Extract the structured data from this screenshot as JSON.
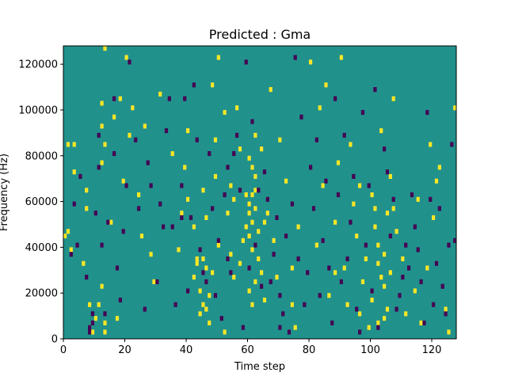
{
  "chart_data": {
    "type": "heatmap",
    "title": "Predicted : Gma",
    "xlabel": "Time step",
    "ylabel": "Frequency (Hz)",
    "xlim": [
      0,
      128
    ],
    "ylim": [
      0,
      128000
    ],
    "xticks": [
      0,
      20,
      40,
      60,
      80,
      100,
      120
    ],
    "yticks": [
      0,
      20000,
      40000,
      60000,
      80000,
      100000,
      120000
    ],
    "grid": false,
    "colors": {
      "background": "#21918c",
      "high": "#fde725",
      "low": "#440154"
    },
    "cells": {
      "high": [
        [
          0,
          44000
        ],
        [
          1,
          46000
        ],
        [
          1,
          84000
        ],
        [
          2,
          38000
        ],
        [
          3,
          72000
        ],
        [
          3,
          84000
        ],
        [
          6,
          32000
        ],
        [
          7,
          64000
        ],
        [
          7,
          56000
        ],
        [
          8,
          14000
        ],
        [
          8,
          4000
        ],
        [
          9,
          2000
        ],
        [
          10,
          8000
        ],
        [
          11,
          14000
        ],
        [
          12,
          22000
        ],
        [
          12,
          76000
        ],
        [
          12,
          92000
        ],
        [
          12,
          102000
        ],
        [
          13,
          6000
        ],
        [
          13,
          2000
        ],
        [
          13,
          84000
        ],
        [
          13,
          126000
        ],
        [
          15,
          50000
        ],
        [
          16,
          96000
        ],
        [
          17,
          8000
        ],
        [
          18,
          104000
        ],
        [
          19,
          68000
        ],
        [
          20,
          122000
        ],
        [
          21,
          88000
        ],
        [
          22,
          100000
        ],
        [
          24,
          62000
        ],
        [
          25,
          44000
        ],
        [
          26,
          92000
        ],
        [
          28,
          36000
        ],
        [
          29,
          24000
        ],
        [
          31,
          106000
        ],
        [
          35,
          80000
        ],
        [
          37,
          38000
        ],
        [
          38,
          54000
        ],
        [
          39,
          74000
        ],
        [
          40,
          60000
        ],
        [
          40,
          90000
        ],
        [
          42,
          48000
        ],
        [
          42,
          26000
        ],
        [
          43,
          34000
        ],
        [
          43,
          32000
        ],
        [
          44,
          20000
        ],
        [
          44,
          10000
        ],
        [
          45,
          14000
        ],
        [
          45,
          34000
        ],
        [
          45,
          64000
        ],
        [
          46,
          30000
        ],
        [
          46,
          52000
        ],
        [
          46,
          12000
        ],
        [
          47,
          6000
        ],
        [
          47,
          18000
        ],
        [
          48,
          28000
        ],
        [
          48,
          110000
        ],
        [
          49,
          70000
        ],
        [
          49,
          86000
        ],
        [
          50,
          40000
        ],
        [
          50,
          122000
        ],
        [
          52,
          98000
        ],
        [
          52,
          2000
        ],
        [
          53,
          54000
        ],
        [
          54,
          36000
        ],
        [
          54,
          66000
        ],
        [
          55,
          26000
        ],
        [
          55,
          60000
        ],
        [
          56,
          100000
        ],
        [
          57,
          32000
        ],
        [
          57,
          82000
        ],
        [
          58,
          42000
        ],
        [
          59,
          48000
        ],
        [
          59,
          62000
        ],
        [
          60,
          54000
        ],
        [
          60,
          44000
        ],
        [
          60,
          58000
        ],
        [
          60,
          78000
        ],
        [
          60,
          20000
        ],
        [
          61,
          62000
        ],
        [
          61,
          50000
        ],
        [
          61,
          38000
        ],
        [
          61,
          14000
        ],
        [
          61,
          74000
        ],
        [
          62,
          70000
        ],
        [
          62,
          24000
        ],
        [
          62,
          88000
        ],
        [
          62,
          56000
        ],
        [
          62,
          64000
        ],
        [
          63,
          46000
        ],
        [
          63,
          34000
        ],
        [
          64,
          28000
        ],
        [
          64,
          82000
        ],
        [
          65,
          50000
        ],
        [
          65,
          16000
        ],
        [
          66,
          54000
        ],
        [
          67,
          108000
        ],
        [
          68,
          42000
        ],
        [
          69,
          26000
        ],
        [
          70,
          86000
        ],
        [
          72,
          68000
        ],
        [
          74,
          30000
        ],
        [
          74,
          14000
        ],
        [
          75,
          4000
        ],
        [
          76,
          48000
        ],
        [
          80,
          120000
        ],
        [
          82,
          40000
        ],
        [
          83,
          100000
        ],
        [
          84,
          66000
        ],
        [
          85,
          110000
        ],
        [
          86,
          18000
        ],
        [
          88,
          50000
        ],
        [
          88,
          28000
        ],
        [
          89,
          76000
        ],
        [
          90,
          122000
        ],
        [
          91,
          30000
        ],
        [
          92,
          14000
        ],
        [
          93,
          84000
        ],
        [
          94,
          58000
        ],
        [
          95,
          44000
        ],
        [
          96,
          66000
        ],
        [
          96,
          10000
        ],
        [
          97,
          24000
        ],
        [
          98,
          34000
        ],
        [
          99,
          4000
        ],
        [
          100,
          62000
        ],
        [
          100,
          16000
        ],
        [
          101,
          48000
        ],
        [
          101,
          56000
        ],
        [
          102,
          32000
        ],
        [
          102,
          40000
        ],
        [
          102,
          6000
        ],
        [
          103,
          26000
        ],
        [
          103,
          90000
        ],
        [
          104,
          8000
        ],
        [
          104,
          36000
        ],
        [
          104,
          22000
        ],
        [
          105,
          54000
        ],
        [
          105,
          12000
        ],
        [
          106,
          28000
        ],
        [
          106,
          70000
        ],
        [
          107,
          104000
        ],
        [
          107,
          56000
        ],
        [
          108,
          46000
        ],
        [
          110,
          34000
        ],
        [
          111,
          10000
        ],
        [
          114,
          20000
        ],
        [
          115,
          60000
        ],
        [
          116,
          6000
        ],
        [
          118,
          30000
        ],
        [
          119,
          84000
        ],
        [
          120,
          52000
        ],
        [
          121,
          68000
        ],
        [
          122,
          74000
        ],
        [
          124,
          12000
        ],
        [
          125,
          2000
        ],
        [
          127,
          100000
        ]
      ],
      "low": [
        [
          2,
          36000
        ],
        [
          3,
          58000
        ],
        [
          4,
          40000
        ],
        [
          5,
          70000
        ],
        [
          7,
          26000
        ],
        [
          8,
          4000
        ],
        [
          8,
          2000
        ],
        [
          9,
          10000
        ],
        [
          9,
          6000
        ],
        [
          10,
          54000
        ],
        [
          11,
          74000
        ],
        [
          11,
          88000
        ],
        [
          12,
          40000
        ],
        [
          13,
          10000
        ],
        [
          14,
          50000
        ],
        [
          16,
          104000
        ],
        [
          16,
          80000
        ],
        [
          17,
          30000
        ],
        [
          18,
          16000
        ],
        [
          19,
          46000
        ],
        [
          20,
          66000
        ],
        [
          21,
          120000
        ],
        [
          23,
          86000
        ],
        [
          24,
          56000
        ],
        [
          26,
          12000
        ],
        [
          27,
          76000
        ],
        [
          28,
          66000
        ],
        [
          30,
          24000
        ],
        [
          31,
          58000
        ],
        [
          32,
          48000
        ],
        [
          33,
          90000
        ],
        [
          34,
          104000
        ],
        [
          35,
          48000
        ],
        [
          36,
          14000
        ],
        [
          38,
          66000
        ],
        [
          38,
          52000
        ],
        [
          39,
          104000
        ],
        [
          40,
          20000
        ],
        [
          41,
          52000
        ],
        [
          42,
          110000
        ],
        [
          43,
          86000
        ],
        [
          44,
          38000
        ],
        [
          45,
          28000
        ],
        [
          46,
          24000
        ],
        [
          47,
          80000
        ],
        [
          48,
          56000
        ],
        [
          49,
          18000
        ],
        [
          50,
          42000
        ],
        [
          51,
          8000
        ],
        [
          52,
          62000
        ],
        [
          53,
          74000
        ],
        [
          53,
          34000
        ],
        [
          54,
          28000
        ],
        [
          55,
          80000
        ],
        [
          56,
          88000
        ],
        [
          57,
          64000
        ],
        [
          58,
          4000
        ],
        [
          59,
          120000
        ],
        [
          60,
          30000
        ],
        [
          61,
          94000
        ],
        [
          62,
          40000
        ],
        [
          63,
          64000
        ],
        [
          64,
          22000
        ],
        [
          65,
          72000
        ],
        [
          66,
          60000
        ],
        [
          67,
          24000
        ],
        [
          68,
          36000
        ],
        [
          69,
          52000
        ],
        [
          70,
          18000
        ],
        [
          70,
          4000
        ],
        [
          71,
          10000
        ],
        [
          72,
          44000
        ],
        [
          73,
          2000
        ],
        [
          74,
          58000
        ],
        [
          75,
          122000
        ],
        [
          76,
          34000
        ],
        [
          77,
          96000
        ],
        [
          78,
          14000
        ],
        [
          79,
          28000
        ],
        [
          80,
          74000
        ],
        [
          81,
          56000
        ],
        [
          82,
          86000
        ],
        [
          83,
          18000
        ],
        [
          84,
          42000
        ],
        [
          85,
          68000
        ],
        [
          86,
          30000
        ],
        [
          87,
          6000
        ],
        [
          88,
          104000
        ],
        [
          89,
          62000
        ],
        [
          90,
          24000
        ],
        [
          91,
          88000
        ],
        [
          92,
          34000
        ],
        [
          93,
          50000
        ],
        [
          94,
          70000
        ],
        [
          95,
          12000
        ],
        [
          96,
          2000
        ],
        [
          97,
          98000
        ],
        [
          98,
          40000
        ],
        [
          99,
          66000
        ],
        [
          100,
          20000
        ],
        [
          101,
          108000
        ],
        [
          102,
          4000
        ],
        [
          104,
          82000
        ],
        [
          105,
          72000
        ],
        [
          106,
          44000
        ],
        [
          107,
          60000
        ],
        [
          108,
          12000
        ],
        [
          109,
          18000
        ],
        [
          110,
          26000
        ],
        [
          111,
          40000
        ],
        [
          112,
          30000
        ],
        [
          113,
          62000
        ],
        [
          114,
          48000
        ],
        [
          115,
          38000
        ],
        [
          116,
          24000
        ],
        [
          117,
          6000
        ],
        [
          118,
          98000
        ],
        [
          119,
          60000
        ],
        [
          120,
          14000
        ],
        [
          121,
          32000
        ],
        [
          122,
          56000
        ],
        [
          123,
          22000
        ],
        [
          124,
          10000
        ],
        [
          125,
          40000
        ],
        [
          126,
          84000
        ],
        [
          127,
          42000
        ]
      ]
    }
  }
}
